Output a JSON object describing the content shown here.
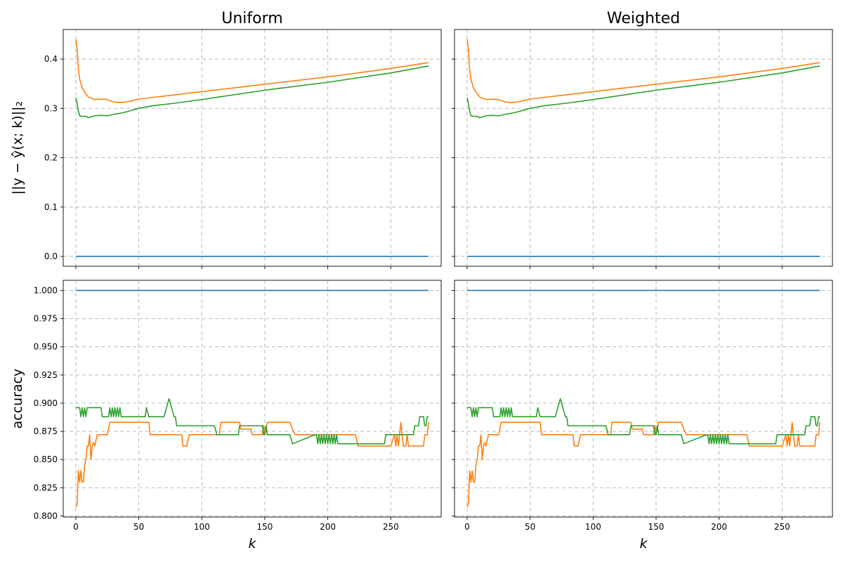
{
  "figure": {
    "columns": [
      "Uniform",
      "Weighted"
    ]
  },
  "chart_data": [
    {
      "type": "line",
      "title": "Uniform",
      "xlabel": "",
      "ylabel": "||y − ŷ(x; k)||₂",
      "xlim": [
        -10,
        290
      ],
      "ylim": [
        -0.02,
        0.46
      ],
      "xticks": [
        0,
        50,
        100,
        150,
        200,
        250
      ],
      "yticks": [
        0.0,
        0.1,
        0.2,
        0.3,
        0.4
      ],
      "ytick_labels": [
        "0.0",
        "0.1",
        "0.2",
        "0.3",
        "0.4"
      ],
      "grid": true,
      "series": [
        {
          "color": "#1f77b4",
          "x": [
            0,
            280
          ],
          "y": [
            0.0,
            0.0
          ]
        },
        {
          "color": "#ff7f0e",
          "x": [
            0,
            1,
            2,
            3,
            5,
            7,
            10,
            15,
            20,
            25,
            30,
            35,
            40,
            50,
            60,
            80,
            100,
            150,
            200,
            250,
            280
          ],
          "y": [
            0.44,
            0.42,
            0.38,
            0.36,
            0.342,
            0.333,
            0.323,
            0.318,
            0.319,
            0.318,
            0.313,
            0.312,
            0.313,
            0.319,
            0.322,
            0.328,
            0.334,
            0.349,
            0.364,
            0.381,
            0.393
          ]
        },
        {
          "color": "#2ca02c",
          "x": [
            0,
            1,
            2,
            3,
            5,
            8,
            10,
            12,
            15,
            20,
            25,
            30,
            35,
            40,
            50,
            60,
            80,
            100,
            150,
            200,
            250,
            280
          ],
          "y": [
            0.322,
            0.31,
            0.295,
            0.285,
            0.284,
            0.284,
            0.281,
            0.283,
            0.285,
            0.286,
            0.285,
            0.288,
            0.29,
            0.293,
            0.3,
            0.305,
            0.311,
            0.318,
            0.337,
            0.353,
            0.372,
            0.386
          ]
        }
      ]
    },
    {
      "type": "line",
      "title": "Weighted",
      "xlabel": "",
      "ylabel": "",
      "xlim": [
        -10,
        290
      ],
      "ylim": [
        -0.02,
        0.46
      ],
      "xticks": [
        0,
        50,
        100,
        150,
        200,
        250
      ],
      "yticks": [
        0.0,
        0.1,
        0.2,
        0.3,
        0.4
      ],
      "grid": true,
      "series": [
        {
          "color": "#1f77b4",
          "x": [
            0,
            280
          ],
          "y": [
            0.0,
            0.0
          ]
        },
        {
          "color": "#ff7f0e",
          "x": [
            0,
            1,
            2,
            3,
            5,
            7,
            10,
            15,
            20,
            25,
            30,
            35,
            40,
            50,
            60,
            80,
            100,
            150,
            200,
            250,
            280
          ],
          "y": [
            0.44,
            0.42,
            0.38,
            0.36,
            0.342,
            0.333,
            0.323,
            0.318,
            0.319,
            0.318,
            0.313,
            0.312,
            0.313,
            0.319,
            0.322,
            0.328,
            0.334,
            0.349,
            0.364,
            0.381,
            0.393
          ]
        },
        {
          "color": "#2ca02c",
          "x": [
            0,
            1,
            2,
            3,
            5,
            8,
            10,
            12,
            15,
            20,
            25,
            30,
            35,
            40,
            50,
            60,
            80,
            100,
            150,
            200,
            250,
            280
          ],
          "y": [
            0.322,
            0.31,
            0.295,
            0.285,
            0.284,
            0.284,
            0.281,
            0.283,
            0.285,
            0.286,
            0.285,
            0.288,
            0.29,
            0.293,
            0.3,
            0.305,
            0.311,
            0.318,
            0.337,
            0.353,
            0.372,
            0.386
          ]
        }
      ]
    },
    {
      "type": "line",
      "title": "",
      "xlabel": "k",
      "ylabel": "accuracy",
      "xlim": [
        -10,
        290
      ],
      "ylim": [
        0.799,
        1.009
      ],
      "xticks": [
        0,
        50,
        100,
        150,
        200,
        250
      ],
      "xtick_labels": [
        "0",
        "50",
        "100",
        "150",
        "200",
        "250"
      ],
      "yticks": [
        0.8,
        0.825,
        0.85,
        0.875,
        0.9,
        0.925,
        0.95,
        0.975,
        1.0
      ],
      "ytick_labels": [
        "0.800",
        "0.825",
        "0.850",
        "0.875",
        "0.900",
        "0.925",
        "0.950",
        "0.975",
        "1.000"
      ],
      "grid": true,
      "series": [
        {
          "color": "#1f77b4",
          "x": [
            0,
            280
          ],
          "y": [
            1.0,
            1.0
          ]
        },
        {
          "color": "#ff7f0e",
          "x": [
            0,
            1,
            2,
            3,
            4,
            5,
            6,
            7,
            8,
            9,
            10,
            11,
            12,
            13,
            14,
            15,
            17,
            18,
            20,
            25,
            27,
            58,
            59,
            70,
            84,
            85,
            88,
            90,
            114,
            115,
            118,
            130,
            131,
            139,
            140,
            143,
            148,
            149,
            150,
            152,
            153,
            160,
            170,
            172,
            174,
            222,
            224,
            250,
            253,
            254,
            255,
            256,
            257,
            258,
            259,
            260,
            262,
            263,
            264,
            265,
            266,
            276,
            277,
            279,
            280
          ],
          "y": [
            0.808,
            0.81,
            0.84,
            0.83,
            0.84,
            0.83,
            0.83,
            0.845,
            0.85,
            0.862,
            0.862,
            0.872,
            0.85,
            0.862,
            0.865,
            0.862,
            0.872,
            0.872,
            0.872,
            0.872,
            0.883,
            0.883,
            0.872,
            0.872,
            0.872,
            0.862,
            0.862,
            0.872,
            0.872,
            0.883,
            0.883,
            0.883,
            0.877,
            0.877,
            0.872,
            0.872,
            0.872,
            0.88,
            0.872,
            0.883,
            0.883,
            0.883,
            0.883,
            0.877,
            0.872,
            0.872,
            0.862,
            0.862,
            0.872,
            0.862,
            0.872,
            0.862,
            0.872,
            0.883,
            0.872,
            0.862,
            0.862,
            0.872,
            0.862,
            0.862,
            0.862,
            0.862,
            0.872,
            0.872,
            0.883
          ]
        },
        {
          "color": "#2ca02c",
          "x": [
            0,
            3,
            4,
            5,
            6,
            7,
            8,
            9,
            10,
            20,
            21,
            26,
            27,
            28,
            29,
            30,
            31,
            32,
            33,
            34,
            35,
            36,
            55,
            56,
            58,
            59,
            70,
            72,
            74,
            76,
            78,
            79,
            80,
            83,
            84,
            110,
            112,
            128,
            129,
            130,
            148,
            149,
            150,
            151,
            152,
            153,
            154,
            168,
            170,
            172,
            190,
            191,
            192,
            193,
            194,
            195,
            196,
            197,
            198,
            199,
            200,
            201,
            202,
            203,
            204,
            205,
            206,
            207,
            208,
            210,
            245,
            246,
            268,
            269,
            270,
            271,
            272,
            273,
            274,
            275,
            276,
            277,
            278,
            279,
            280
          ],
          "y": [
            0.896,
            0.896,
            0.888,
            0.896,
            0.888,
            0.896,
            0.888,
            0.896,
            0.896,
            0.896,
            0.888,
            0.888,
            0.896,
            0.888,
            0.896,
            0.888,
            0.896,
            0.888,
            0.896,
            0.888,
            0.896,
            0.888,
            0.888,
            0.896,
            0.888,
            0.888,
            0.888,
            0.896,
            0.904,
            0.896,
            0.888,
            0.888,
            0.88,
            0.88,
            0.88,
            0.88,
            0.872,
            0.872,
            0.872,
            0.88,
            0.88,
            0.872,
            0.872,
            0.88,
            0.872,
            0.872,
            0.872,
            0.872,
            0.872,
            0.864,
            0.872,
            0.872,
            0.864,
            0.872,
            0.864,
            0.872,
            0.864,
            0.872,
            0.864,
            0.872,
            0.864,
            0.872,
            0.864,
            0.872,
            0.864,
            0.872,
            0.864,
            0.872,
            0.864,
            0.864,
            0.864,
            0.872,
            0.872,
            0.88,
            0.88,
            0.88,
            0.88,
            0.888,
            0.888,
            0.888,
            0.888,
            0.88,
            0.88,
            0.888,
            0.888
          ]
        }
      ]
    },
    {
      "type": "line",
      "title": "",
      "xlabel": "k",
      "ylabel": "",
      "xlim": [
        -10,
        290
      ],
      "ylim": [
        0.799,
        1.009
      ],
      "xticks": [
        0,
        50,
        100,
        150,
        200,
        250
      ],
      "xtick_labels": [
        "0",
        "50",
        "100",
        "150",
        "200",
        "250"
      ],
      "yticks": [
        0.8,
        0.825,
        0.85,
        0.875,
        0.9,
        0.925,
        0.95,
        0.975,
        1.0
      ],
      "grid": true,
      "series": [
        {
          "color": "#1f77b4",
          "x": [
            0,
            280
          ],
          "y": [
            1.0,
            1.0
          ]
        },
        {
          "color": "#ff7f0e",
          "x": [
            0,
            1,
            2,
            3,
            4,
            5,
            6,
            7,
            8,
            9,
            10,
            11,
            12,
            13,
            14,
            15,
            17,
            18,
            20,
            25,
            27,
            58,
            59,
            70,
            84,
            85,
            88,
            90,
            114,
            115,
            118,
            130,
            131,
            139,
            140,
            143,
            148,
            149,
            150,
            152,
            153,
            160,
            170,
            172,
            174,
            222,
            224,
            250,
            253,
            254,
            255,
            256,
            257,
            258,
            259,
            260,
            262,
            263,
            264,
            265,
            266,
            276,
            277,
            279,
            280
          ],
          "y": [
            0.808,
            0.81,
            0.84,
            0.83,
            0.84,
            0.83,
            0.83,
            0.845,
            0.85,
            0.862,
            0.862,
            0.872,
            0.85,
            0.862,
            0.865,
            0.862,
            0.872,
            0.872,
            0.872,
            0.872,
            0.883,
            0.883,
            0.872,
            0.872,
            0.872,
            0.862,
            0.862,
            0.872,
            0.872,
            0.883,
            0.883,
            0.883,
            0.877,
            0.877,
            0.872,
            0.872,
            0.872,
            0.88,
            0.872,
            0.883,
            0.883,
            0.883,
            0.883,
            0.877,
            0.872,
            0.872,
            0.862,
            0.862,
            0.872,
            0.862,
            0.872,
            0.862,
            0.872,
            0.883,
            0.872,
            0.862,
            0.862,
            0.872,
            0.862,
            0.862,
            0.862,
            0.862,
            0.872,
            0.872,
            0.883
          ]
        },
        {
          "color": "#2ca02c",
          "x": [
            0,
            3,
            4,
            5,
            6,
            7,
            8,
            9,
            10,
            20,
            21,
            26,
            27,
            28,
            29,
            30,
            31,
            32,
            33,
            34,
            35,
            36,
            55,
            56,
            58,
            59,
            70,
            72,
            74,
            76,
            78,
            79,
            80,
            83,
            84,
            110,
            112,
            128,
            129,
            130,
            148,
            149,
            150,
            151,
            152,
            153,
            154,
            168,
            170,
            172,
            190,
            191,
            192,
            193,
            194,
            195,
            196,
            197,
            198,
            199,
            200,
            201,
            202,
            203,
            204,
            205,
            206,
            207,
            208,
            210,
            245,
            246,
            268,
            269,
            270,
            271,
            272,
            273,
            274,
            275,
            276,
            277,
            278,
            279,
            280
          ],
          "y": [
            0.896,
            0.896,
            0.888,
            0.896,
            0.888,
            0.896,
            0.888,
            0.896,
            0.896,
            0.896,
            0.888,
            0.888,
            0.896,
            0.888,
            0.896,
            0.888,
            0.896,
            0.888,
            0.896,
            0.888,
            0.896,
            0.888,
            0.888,
            0.896,
            0.888,
            0.888,
            0.888,
            0.896,
            0.904,
            0.896,
            0.888,
            0.888,
            0.88,
            0.88,
            0.88,
            0.88,
            0.872,
            0.872,
            0.872,
            0.88,
            0.88,
            0.872,
            0.872,
            0.88,
            0.872,
            0.872,
            0.872,
            0.872,
            0.872,
            0.864,
            0.872,
            0.872,
            0.864,
            0.872,
            0.864,
            0.872,
            0.864,
            0.872,
            0.864,
            0.872,
            0.864,
            0.872,
            0.864,
            0.872,
            0.864,
            0.872,
            0.864,
            0.872,
            0.864,
            0.864,
            0.864,
            0.872,
            0.872,
            0.88,
            0.88,
            0.88,
            0.88,
            0.888,
            0.888,
            0.888,
            0.888,
            0.88,
            0.88,
            0.888,
            0.888
          ]
        }
      ]
    }
  ]
}
